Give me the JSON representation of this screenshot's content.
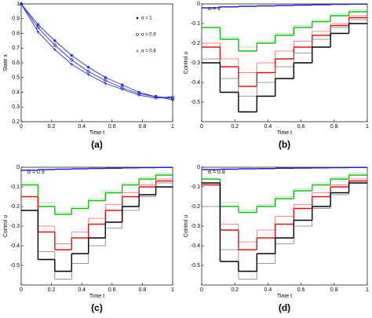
{
  "chart_data": [
    {
      "type": "line",
      "label": "(a)",
      "xlabel": "Time t",
      "ylabel": "State x",
      "xlim": [
        0,
        1
      ],
      "ylim": [
        0.2,
        1
      ],
      "xticks": [
        0,
        0.2,
        0.4,
        0.6,
        0.8,
        1
      ],
      "yticks": [
        0.2,
        0.3,
        0.4,
        0.5,
        0.6,
        0.7,
        0.8,
        0.9,
        1
      ],
      "x": [
        0,
        0.111,
        0.222,
        0.333,
        0.444,
        0.556,
        0.667,
        0.778,
        0.889,
        1
      ],
      "series": [
        {
          "name": "α = 1",
          "marker": "star",
          "color": "#2b2bd0",
          "values": [
            1,
            0.86,
            0.75,
            0.65,
            0.57,
            0.5,
            0.45,
            0.4,
            0.37,
            0.35
          ]
        },
        {
          "name": "α = 0.9",
          "marker": "circle",
          "color": "#2b2bd0",
          "values": [
            1,
            0.84,
            0.72,
            0.62,
            0.54,
            0.48,
            0.43,
            0.39,
            0.37,
            0.36
          ]
        },
        {
          "name": "α = 0.8",
          "marker": "plus",
          "color": "#2b2bd0",
          "values": [
            1,
            0.81,
            0.69,
            0.59,
            0.52,
            0.46,
            0.42,
            0.38,
            0.36,
            0.37
          ]
        }
      ]
    },
    {
      "type": "step",
      "label": "(b)",
      "xlabel": "Time t",
      "ylabel": "Control u",
      "annotation": "α = 1",
      "xlim": [
        0,
        1
      ],
      "ylim": [
        -0.6,
        0
      ],
      "xticks": [
        0,
        0.2,
        0.4,
        0.6,
        0.8,
        1
      ],
      "yticks": [
        -0.5,
        -0.4,
        -0.3,
        -0.2,
        -0.1,
        0
      ],
      "x": [
        0,
        0.111,
        0.222,
        0.333,
        0.444,
        0.556,
        0.667,
        0.778,
        0.889
      ],
      "series": [
        {
          "color": "#2020d0",
          "width": 1.5,
          "values": [
            -0.02,
            -0.015,
            -0.012,
            -0.01,
            -0.008,
            -0.006,
            -0.004,
            -0.002,
            -0.001
          ]
        },
        {
          "color": "#90ee90",
          "width": 0.8,
          "values": [
            -0.12,
            -0.17,
            -0.22,
            -0.19,
            -0.15,
            -0.11,
            -0.08,
            -0.05,
            -0.03
          ]
        },
        {
          "color": "#10c010",
          "width": 1.4,
          "values": [
            -0.12,
            -0.18,
            -0.24,
            -0.2,
            -0.16,
            -0.12,
            -0.09,
            -0.06,
            -0.04
          ]
        },
        {
          "color": "#ff6060",
          "width": 0.8,
          "values": [
            -0.2,
            -0.28,
            -0.35,
            -0.3,
            -0.24,
            -0.19,
            -0.14,
            -0.1,
            -0.06
          ]
        },
        {
          "color": "#e01010",
          "width": 1.4,
          "values": [
            -0.22,
            -0.32,
            -0.42,
            -0.35,
            -0.28,
            -0.22,
            -0.16,
            -0.11,
            -0.07
          ]
        },
        {
          "color": "#777777",
          "width": 0.8,
          "values": [
            -0.28,
            -0.38,
            -0.47,
            -0.4,
            -0.32,
            -0.25,
            -0.18,
            -0.12,
            -0.08
          ]
        },
        {
          "color": "#000000",
          "width": 1.4,
          "values": [
            -0.3,
            -0.45,
            -0.55,
            -0.47,
            -0.38,
            -0.3,
            -0.22,
            -0.15,
            -0.1
          ]
        }
      ]
    },
    {
      "type": "step",
      "label": "(c)",
      "xlabel": "Time t",
      "ylabel": "Control u",
      "annotation": "α = 0.9",
      "xlim": [
        0,
        1
      ],
      "ylim": [
        -0.6,
        0
      ],
      "xticks": [
        0,
        0.2,
        0.4,
        0.6,
        0.8,
        1
      ],
      "yticks": [
        -0.5,
        -0.4,
        -0.3,
        -0.2,
        -0.1,
        0
      ],
      "x": [
        0,
        0.111,
        0.222,
        0.333,
        0.444,
        0.556,
        0.667,
        0.778,
        0.889
      ],
      "series": [
        {
          "color": "#2020d0",
          "width": 1.5,
          "values": [
            -0.015,
            -0.012,
            -0.01,
            -0.008,
            -0.006,
            -0.005,
            -0.003,
            -0.002,
            -0.001
          ]
        },
        {
          "color": "#90ee90",
          "width": 0.8,
          "values": [
            -0.08,
            -0.18,
            -0.23,
            -0.2,
            -0.16,
            -0.12,
            -0.08,
            -0.05,
            -0.03
          ]
        },
        {
          "color": "#10c010",
          "width": 1.4,
          "values": [
            -0.09,
            -0.2,
            -0.24,
            -0.21,
            -0.17,
            -0.13,
            -0.09,
            -0.06,
            -0.04
          ]
        },
        {
          "color": "#ff6060",
          "width": 0.8,
          "values": [
            -0.15,
            -0.3,
            -0.39,
            -0.33,
            -0.26,
            -0.19,
            -0.13,
            -0.09,
            -0.06
          ]
        },
        {
          "color": "#e01010",
          "width": 1.4,
          "values": [
            -0.15,
            -0.33,
            -0.42,
            -0.36,
            -0.29,
            -0.22,
            -0.15,
            -0.1,
            -0.07
          ]
        },
        {
          "color": "#777777",
          "width": 0.8,
          "values": [
            -0.22,
            -0.43,
            -0.57,
            -0.49,
            -0.4,
            -0.31,
            -0.22,
            -0.15,
            -0.08
          ]
        },
        {
          "color": "#000000",
          "width": 1.4,
          "values": [
            -0.22,
            -0.47,
            -0.53,
            -0.44,
            -0.36,
            -0.28,
            -0.2,
            -0.14,
            -0.1
          ]
        }
      ]
    },
    {
      "type": "step",
      "label": "(d)",
      "xlabel": "Time t",
      "ylabel": "Control u",
      "annotation": "α = 0.8",
      "xlim": [
        0,
        1
      ],
      "ylim": [
        -0.6,
        0
      ],
      "xticks": [
        0,
        0.2,
        0.4,
        0.6,
        0.8,
        1
      ],
      "yticks": [
        -0.5,
        -0.4,
        -0.3,
        -0.2,
        -0.1,
        0
      ],
      "x": [
        0,
        0.111,
        0.222,
        0.333,
        0.444,
        0.556,
        0.667,
        0.778,
        0.889
      ],
      "series": [
        {
          "color": "#2020d0",
          "width": 1.5,
          "values": [
            -0.012,
            -0.01,
            -0.008,
            -0.007,
            -0.005,
            -0.004,
            -0.003,
            -0.002,
            -0.001
          ]
        },
        {
          "color": "#90ee90",
          "width": 0.8,
          "values": [
            -0.06,
            -0.18,
            -0.22,
            -0.19,
            -0.15,
            -0.11,
            -0.08,
            -0.05,
            -0.03
          ]
        },
        {
          "color": "#10c010",
          "width": 1.4,
          "values": [
            -0.06,
            -0.2,
            -0.23,
            -0.2,
            -0.16,
            -0.12,
            -0.09,
            -0.06,
            -0.04
          ]
        },
        {
          "color": "#ff6060",
          "width": 0.8,
          "values": [
            -0.08,
            -0.29,
            -0.38,
            -0.32,
            -0.25,
            -0.19,
            -0.13,
            -0.09,
            -0.06
          ]
        },
        {
          "color": "#e01010",
          "width": 1.4,
          "values": [
            -0.09,
            -0.32,
            -0.42,
            -0.36,
            -0.29,
            -0.21,
            -0.15,
            -0.1,
            -0.07
          ]
        },
        {
          "color": "#777777",
          "width": 0.8,
          "values": [
            -0.2,
            -0.42,
            -0.57,
            -0.49,
            -0.39,
            -0.3,
            -0.21,
            -0.14,
            -0.08
          ]
        },
        {
          "color": "#000000",
          "width": 1.4,
          "values": [
            -0.08,
            -0.48,
            -0.53,
            -0.44,
            -0.36,
            -0.27,
            -0.2,
            -0.13,
            -0.08
          ]
        }
      ]
    }
  ]
}
